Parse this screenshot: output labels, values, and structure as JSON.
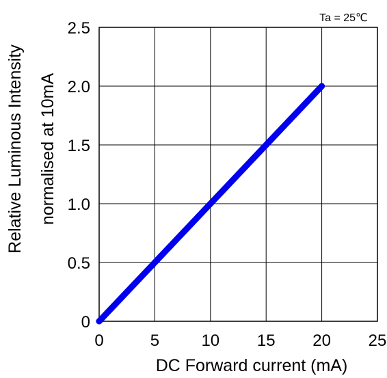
{
  "chart_data": {
    "type": "line",
    "xlabel": "DC Forward current (mA)",
    "ylabel_line1": "Relative Luminous Intensity",
    "ylabel_line2": "normalised at 10mA",
    "annotation": "Ta = 25℃",
    "xlim": [
      0,
      25
    ],
    "ylim": [
      0,
      2.5
    ],
    "x_ticks": [
      0,
      5,
      10,
      15,
      20,
      25
    ],
    "y_ticks": [
      0,
      0.5,
      1.0,
      1.5,
      2.0,
      2.5
    ],
    "x_tick_labels": [
      "0",
      "5",
      "10",
      "15",
      "20",
      "25"
    ],
    "y_tick_labels": [
      "0",
      "0.5",
      "1.0",
      "1.5",
      "2.0",
      "2.5"
    ],
    "grid": true,
    "series": [
      {
        "x": [
          0,
          5,
          10,
          15,
          20
        ],
        "y": [
          0,
          0.5,
          1.0,
          1.5,
          2.0
        ],
        "color": "#0000ee"
      }
    ]
  }
}
